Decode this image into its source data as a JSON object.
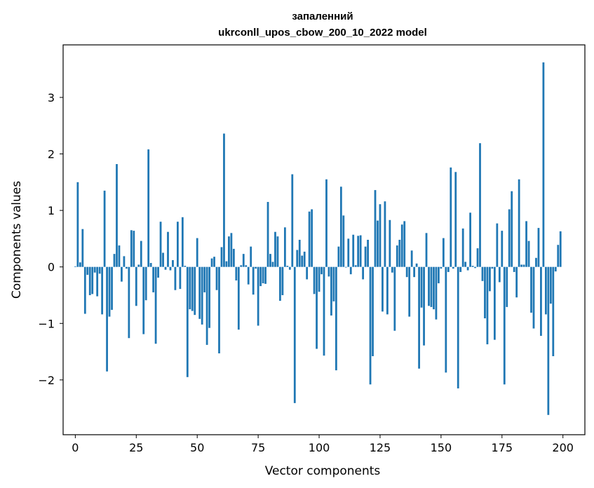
{
  "chart_data": {
    "type": "bar",
    "title": "запаленний",
    "subtitle": "ukrconll_upos_cbow_200_10_2022 model",
    "xlabel": "Vector components",
    "ylabel": "Components values",
    "xlim": [
      -5,
      209
    ],
    "ylim": [
      -2.97,
      3.93
    ],
    "xticks": [
      0,
      25,
      50,
      75,
      100,
      125,
      150,
      175,
      200
    ],
    "yticks": [
      -2,
      -1,
      0,
      1,
      2,
      3
    ],
    "ytick_labels": [
      "−2",
      "−1",
      "0",
      "1",
      "2",
      "3"
    ],
    "grid": false,
    "bar_color": "#1f77b4",
    "values": [
      0.01,
      1.5,
      0.08,
      0.67,
      -0.83,
      -0.14,
      -0.5,
      -0.48,
      -0.1,
      -0.52,
      -0.12,
      -0.84,
      1.35,
      -1.85,
      -0.88,
      -0.76,
      0.23,
      1.82,
      0.38,
      -0.26,
      0.19,
      -0.03,
      -1.26,
      0.65,
      0.64,
      -0.69,
      0.04,
      0.46,
      -1.19,
      -0.59,
      2.08,
      0.07,
      -0.45,
      -1.36,
      -0.19,
      0.8,
      0.25,
      -0.05,
      0.62,
      -0.06,
      0.12,
      -0.41,
      0.8,
      -0.39,
      0.88,
      0.02,
      -1.95,
      -0.75,
      -0.78,
      -0.85,
      0.51,
      -0.92,
      -1.02,
      -0.45,
      -1.38,
      -1.08,
      0.15,
      0.18,
      -0.41,
      -1.53,
      0.35,
      2.36,
      0.1,
      0.54,
      0.6,
      0.32,
      -0.24,
      -1.11,
      0.03,
      0.23,
      0.03,
      -0.31,
      0.36,
      -0.49,
      -0.03,
      -1.04,
      -0.34,
      -0.29,
      -0.3,
      1.15,
      0.23,
      0.09,
      0.62,
      0.54,
      -0.6,
      -0.5,
      0.7,
      0.02,
      -0.05,
      1.64,
      -2.41,
      0.3,
      0.48,
      0.2,
      0.27,
      -0.22,
      0.98,
      1.02,
      -0.48,
      -1.45,
      -0.44,
      -0.13,
      -1.57,
      1.55,
      -0.17,
      -0.86,
      -0.61,
      -1.83,
      0.36,
      1.42,
      0.91,
      -0.01,
      0.5,
      -0.13,
      0.57,
      0.03,
      0.55,
      0.56,
      -0.22,
      0.36,
      0.48,
      -2.08,
      -1.58,
      1.36,
      0.82,
      1.11,
      -0.79,
      1.16,
      -0.84,
      0.83,
      -0.1,
      -1.13,
      0.38,
      0.48,
      0.75,
      0.81,
      -0.18,
      -0.88,
      0.29,
      -0.18,
      0.06,
      -1.8,
      -0.72,
      -1.39,
      0.6,
      -0.69,
      -0.71,
      -0.75,
      -0.93,
      -0.29,
      -0.03,
      0.51,
      -1.87,
      -0.09,
      1.76,
      -0.03,
      1.68,
      -2.15,
      -0.09,
      0.68,
      0.09,
      -0.06,
      0.96,
      0.02,
      -0.02,
      0.33,
      2.19,
      -0.25,
      -0.91,
      -1.37,
      -0.43,
      -0.03,
      -1.29,
      0.77,
      -0.27,
      0.64,
      -2.08,
      -0.71,
      1.02,
      1.34,
      -0.09,
      -0.54,
      1.55,
      0.04,
      0.04,
      0.81,
      0.46,
      -0.81,
      -1.09,
      0.16,
      0.69,
      -1.22,
      3.62,
      -0.84,
      -2.62,
      -0.65,
      -1.58,
      -0.08,
      0.39,
      0.63
    ]
  }
}
